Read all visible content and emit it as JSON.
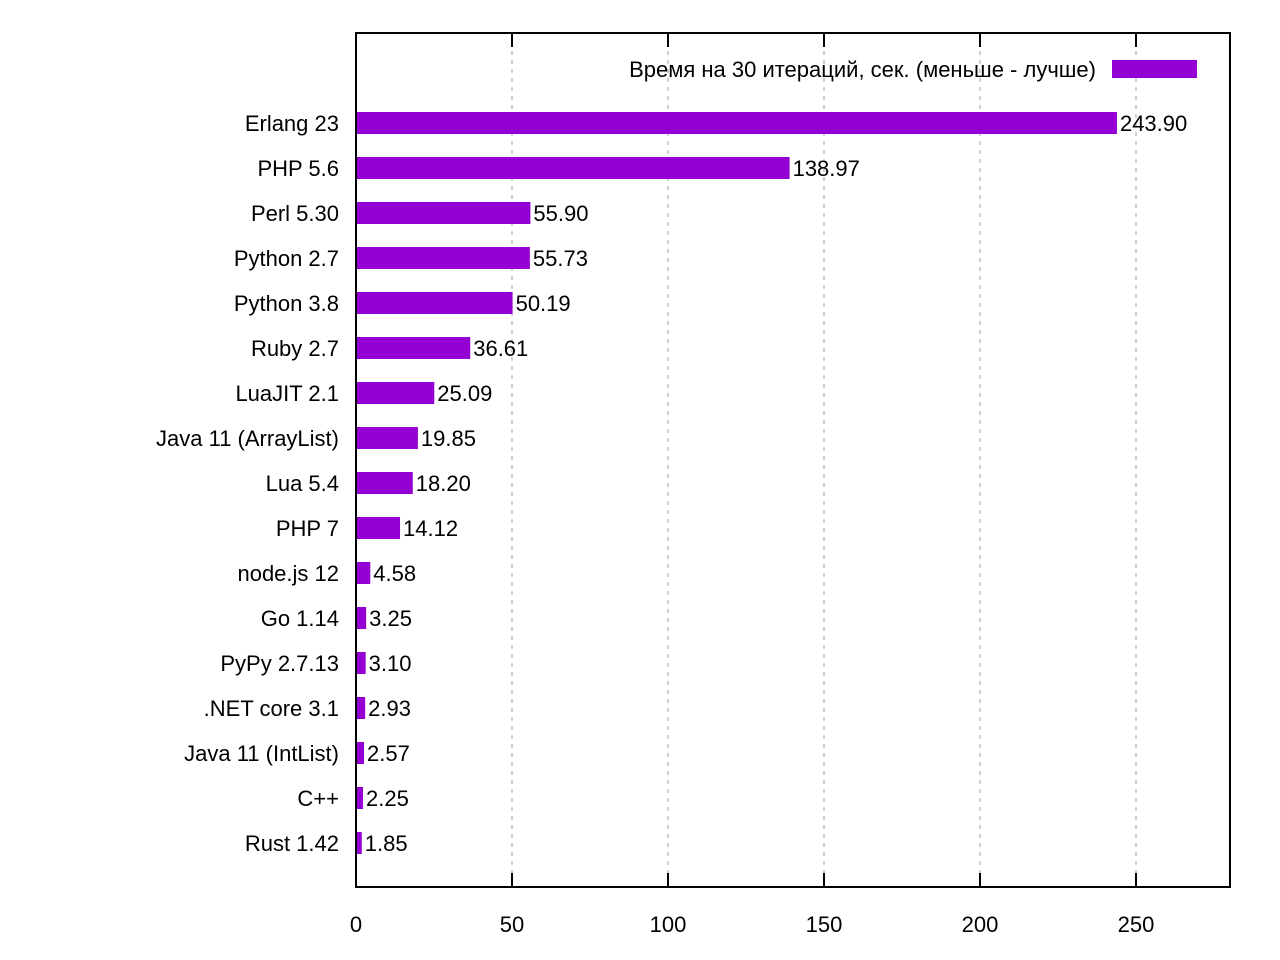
{
  "chart_data": {
    "type": "bar",
    "orientation": "horizontal",
    "categories": [
      "Erlang 23",
      "PHP 5.6",
      "Perl 5.30",
      "Python 2.7",
      "Python 3.8",
      "Ruby 2.7",
      "LuaJIT 2.1",
      "Java 11 (ArrayList)",
      "Lua 5.4",
      "PHP 7",
      "node.js 12",
      "Go 1.14",
      "PyPy 2.7.13",
      ".NET core 3.1",
      "Java 11 (IntList)",
      "C++",
      "Rust 1.42"
    ],
    "series": [
      {
        "name": "Время на 30 итераций, сек. (меньше - лучше)",
        "values": [
          243.9,
          138.97,
          55.9,
          55.73,
          50.19,
          36.61,
          25.09,
          19.85,
          18.2,
          14.12,
          4.58,
          3.25,
          3.1,
          2.93,
          2.57,
          2.25,
          1.85
        ],
        "labels": [
          "243.90",
          "138.97",
          "55.90",
          "55.73",
          "50.19",
          "36.61",
          "25.09",
          "19.85",
          "18.20",
          "14.12",
          "4.58",
          "3.25",
          "3.10",
          "2.93",
          "2.57",
          "2.25",
          "1.85"
        ]
      }
    ],
    "x_ticks": [
      "0",
      "50",
      "100",
      "150",
      "200",
      "250"
    ],
    "xlim": [
      0,
      280
    ],
    "grid": "vertical dashed",
    "legend_position": "top-right",
    "colors": {
      "bar": "#9400d3",
      "axis": "#000000",
      "grid": "#a0a0a0"
    }
  }
}
